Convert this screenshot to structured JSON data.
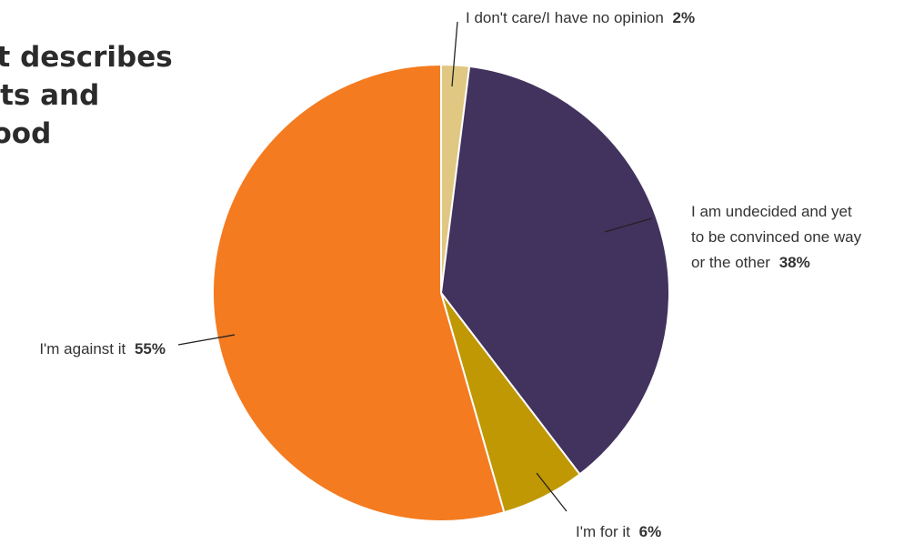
{
  "title_lines": [
    "st describes",
    "hts and",
    "food"
  ],
  "chart_data": {
    "type": "pie",
    "start_angle_deg": 0,
    "direction": "clockwise",
    "slices": [
      {
        "label": "I don't care/I have no opinion",
        "value": 2,
        "value_text": "2%",
        "color": "#e0c882"
      },
      {
        "label_lines": [
          "I am undecided and yet",
          "to be convinced one way",
          "or the other"
        ],
        "label": "I am undecided and yet to be convinced one way or the other",
        "value": 38,
        "value_text": "38%",
        "color": "#41325e"
      },
      {
        "label": "I'm for it",
        "value": 6,
        "value_text": "6%",
        "color": "#bf9804"
      },
      {
        "label": "I'm against it",
        "value": 55,
        "value_text": "55%",
        "color": "#f47b20"
      }
    ],
    "legend": "none"
  }
}
